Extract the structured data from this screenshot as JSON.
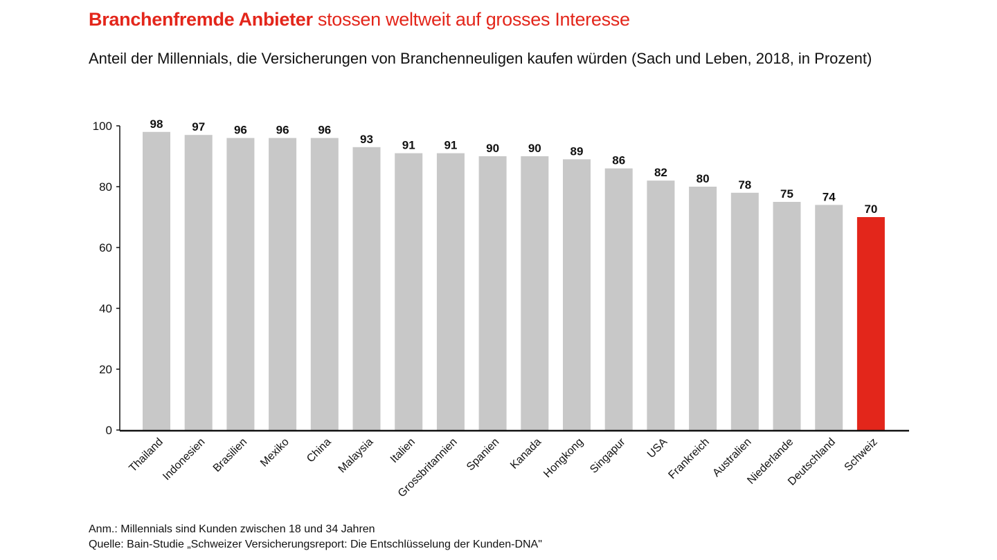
{
  "header": {
    "title_bold": "Branchenfremde Anbieter",
    "title_rest": " stossen weltweit auf grosses Interesse",
    "subtitle": "Anteil der Millennials, die Versicherungen von Branchenneuligen kaufen würden (Sach und Leben, 2018, in Prozent)"
  },
  "colors": {
    "accent": "#e3261b",
    "bar": "#c8c8c8",
    "text": "#111111",
    "axis": "#111111"
  },
  "chart_data": {
    "type": "bar",
    "title": "",
    "xlabel": "",
    "ylabel": "",
    "ylim": [
      0,
      100
    ],
    "yticks": [
      0,
      20,
      40,
      60,
      80,
      100
    ],
    "grid": false,
    "legend": "none",
    "data_labels": true,
    "categories": [
      "Thailand",
      "Indonesien",
      "Brasilien",
      "Mexiko",
      "China",
      "Malaysia",
      "Italien",
      "Grossbritannien",
      "Spanien",
      "Kanada",
      "Hongkong",
      "Singapur",
      "USA",
      "Frankreich",
      "Australien",
      "Niederlande",
      "Deutschland",
      "Schweiz"
    ],
    "values": [
      98,
      97,
      96,
      96,
      96,
      93,
      91,
      91,
      90,
      90,
      89,
      86,
      82,
      80,
      78,
      75,
      74,
      70
    ],
    "highlight": "Schweiz"
  },
  "notes": {
    "anm": "Anm.: Millennials sind Kunden zwischen 18 und 34 Jahren",
    "quelle": "Quelle: Bain-Studie „Schweizer Versicherungsreport: Die Entschlüsselung der Kunden-DNA\""
  }
}
